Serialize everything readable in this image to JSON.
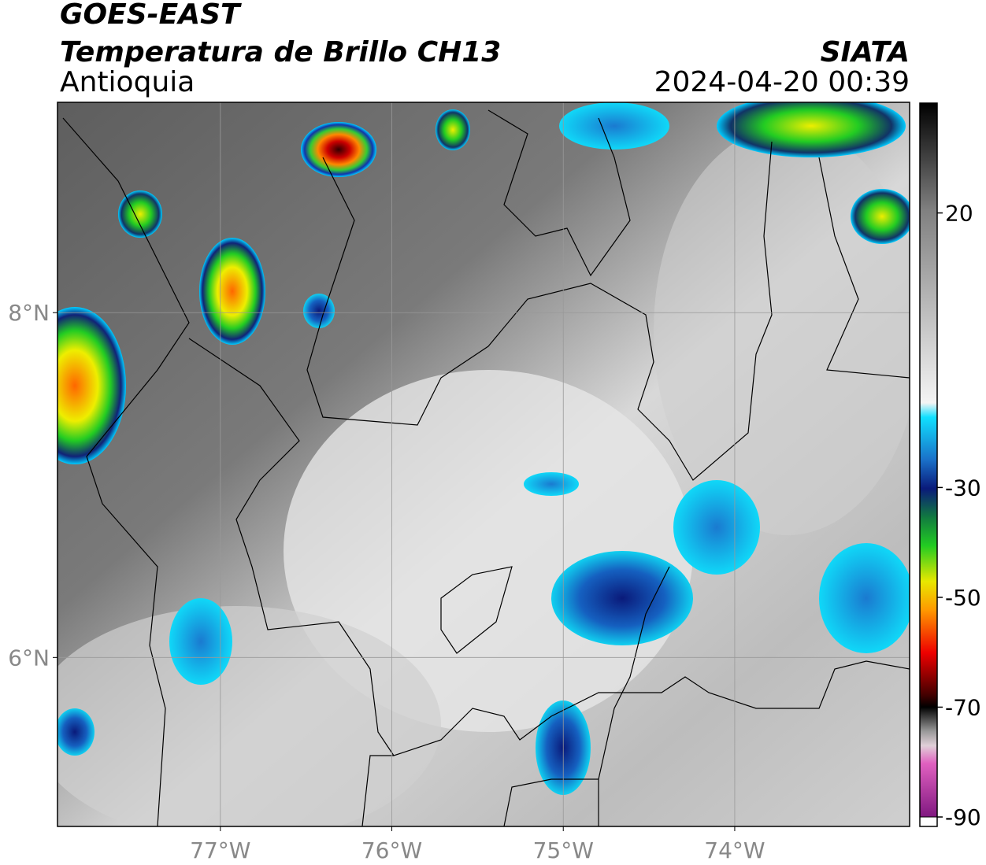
{
  "header": {
    "title": "GOES-EAST",
    "subtitle": "Temperatura de Brillo CH13",
    "region": "Antioquia",
    "source": "SIATA",
    "datetime": "2024-04-20 00:39"
  },
  "map": {
    "xlim": [
      -77.95,
      -72.98
    ],
    "ylim": [
      5.02,
      9.22
    ],
    "grid": true,
    "xticks": [
      {
        "value": -77,
        "label": "77°W"
      },
      {
        "value": -76,
        "label": "76°W"
      },
      {
        "value": -75,
        "label": "75°W"
      },
      {
        "value": -74,
        "label": "74°W"
      }
    ],
    "yticks": [
      {
        "value": 6,
        "label": "6°N"
      },
      {
        "value": 8,
        "label": "8°N"
      }
    ]
  },
  "colorbar": {
    "ylim": [
      -90,
      40
    ],
    "yticks": [
      20,
      -30,
      -50,
      -70,
      -90
    ]
  }
}
